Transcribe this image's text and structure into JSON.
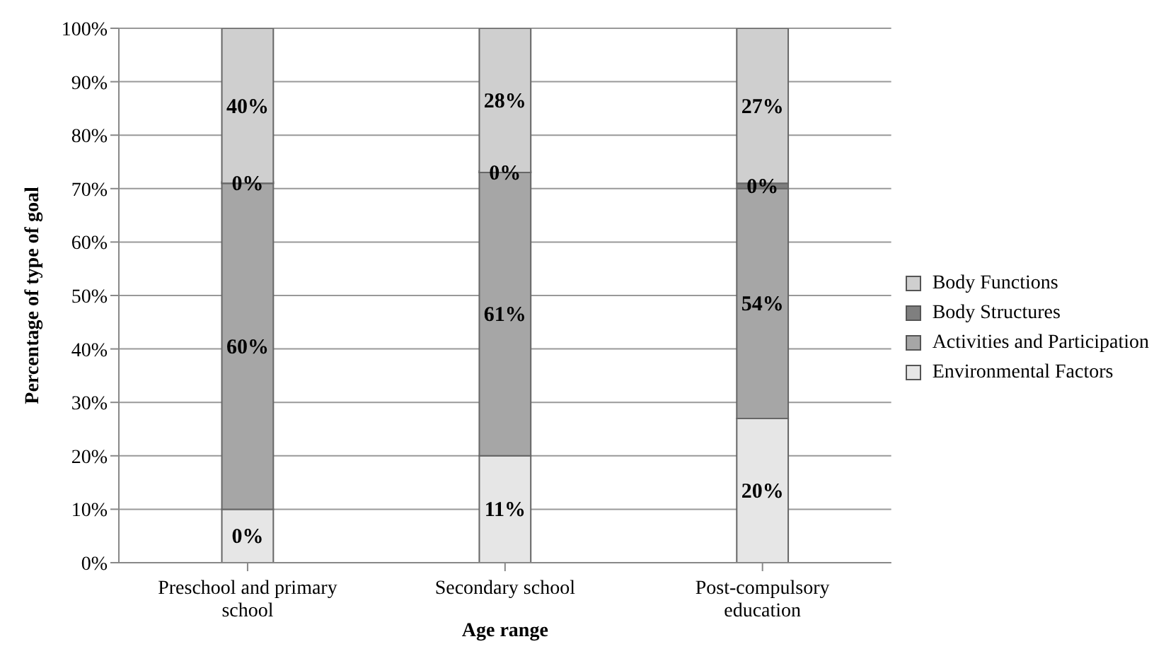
{
  "chart_data": {
    "type": "bar",
    "stacked": true,
    "xlabel": "Age range",
    "ylabel": "Percentage of type of goal",
    "categories": [
      "Preschool and primary school",
      "Secondary school",
      "Post-compulsory education"
    ],
    "series": [
      {
        "name": "Environmental Factors",
        "color": "#e6e6e6",
        "values": [
          10,
          20,
          27
        ]
      },
      {
        "name": "Activities and Participation",
        "color": "#a6a6a6",
        "values": [
          61,
          53,
          43
        ]
      },
      {
        "name": "Body Structures",
        "color": "#7f7f7f",
        "values": [
          0,
          0,
          1
        ]
      },
      {
        "name": "Body Functions",
        "color": "#cfcfcf",
        "values": [
          29,
          27,
          29
        ]
      }
    ],
    "annotations": [
      "0%",
      "60%",
      "0%",
      "40%",
      "11%",
      "61%",
      "0%",
      "28%",
      "20%",
      "54%",
      "0%",
      "27%"
    ],
    "ylim": [
      0,
      100
    ],
    "yticks": [
      {
        "value": 0,
        "label": "0%"
      },
      {
        "value": 10,
        "label": "10%"
      },
      {
        "value": 20,
        "label": "20%"
      },
      {
        "value": 30,
        "label": "30%"
      },
      {
        "value": 40,
        "label": "40%"
      },
      {
        "value": 50,
        "label": "50%"
      },
      {
        "value": 60,
        "label": "60%"
      },
      {
        "value": 70,
        "label": "70%"
      },
      {
        "value": 80,
        "label": "80%"
      },
      {
        "value": 90,
        "label": "90%"
      },
      {
        "value": 100,
        "label": "100%"
      }
    ],
    "grid": "y",
    "legend": "right"
  }
}
